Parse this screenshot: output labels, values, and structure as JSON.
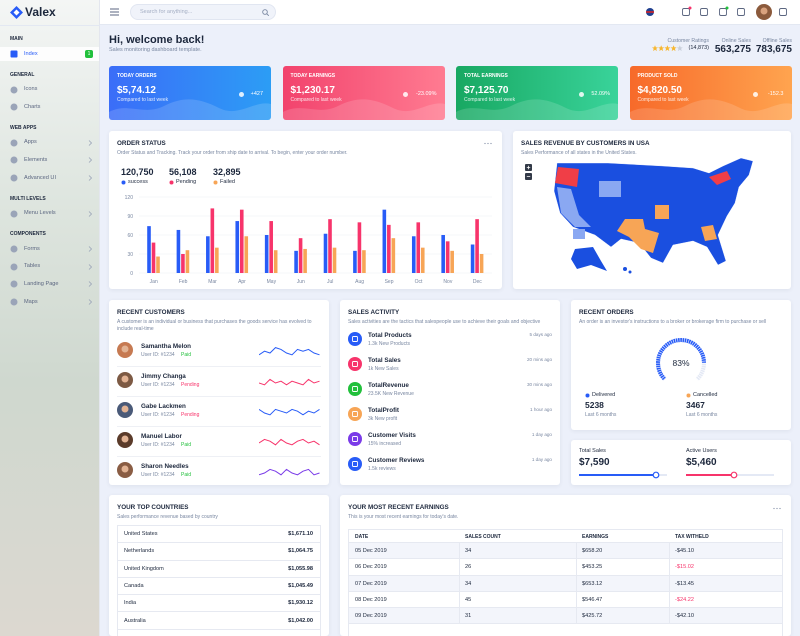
{
  "sidebar": {
    "brand": "Valex",
    "sections": [
      {
        "title": "MAIN",
        "items": [
          {
            "label": "Index",
            "badge": "1"
          }
        ]
      },
      {
        "title": "GENERAL",
        "items": [
          {
            "label": "Icons"
          },
          {
            "label": "Charts"
          }
        ]
      },
      {
        "title": "WEB APPS",
        "items": [
          {
            "label": "Apps"
          },
          {
            "label": "Elements"
          },
          {
            "label": "Advanced UI"
          }
        ]
      },
      {
        "title": "MULTI LEVELS",
        "items": [
          {
            "label": "Menu Levels"
          }
        ]
      },
      {
        "title": "COMPONENTS",
        "items": [
          {
            "label": "Forms"
          },
          {
            "label": "Tables"
          },
          {
            "label": "Landing Page"
          },
          {
            "label": "Maps"
          }
        ]
      }
    ]
  },
  "header": {
    "search_placeholder": "Search for anything..."
  },
  "welcome": {
    "title": "Hi, welcome back!",
    "subtitle": "Sales monitoring dashboard template.",
    "ratings": {
      "label": "Customer Ratings",
      "count": "(14,873)"
    },
    "stats": [
      {
        "label": "Online Sales",
        "value": "563,275"
      },
      {
        "label": "Offline Sales",
        "value": "783,675"
      }
    ]
  },
  "kpis": [
    {
      "title": "TODAY ORDERS",
      "value": "$5,74.12",
      "note": "Compared to last week",
      "change": "+427"
    },
    {
      "title": "TODAY EARNINGS",
      "value": "$1,230.17",
      "note": "Compared to last week",
      "change": "-23.09%"
    },
    {
      "title": "TOTAL EARNINGS",
      "value": "$7,125.70",
      "note": "Compared to last week",
      "change": "52.09%"
    },
    {
      "title": "PRODUCT SOLD",
      "value": "$4,820.50",
      "note": "Compared to last week",
      "change": "-152.3"
    }
  ],
  "order_status": {
    "title": "ORDER STATUS",
    "description": "Order Status and Tracking. Track your order from ship date to arrival. To begin, enter your order number.",
    "stats": [
      {
        "value": "120,750",
        "label": "success"
      },
      {
        "value": "56,108",
        "label": "Pending"
      },
      {
        "value": "32,895",
        "label": "Failed"
      }
    ],
    "chart": {
      "type": "bar",
      "categories": [
        "Jan",
        "Feb",
        "Mar",
        "Apr",
        "May",
        "Jun",
        "Jul",
        "Aug",
        "Sep",
        "Oct",
        "Nov",
        "Dec"
      ],
      "series": [
        {
          "color": "#285cf7",
          "values": [
            74,
            68,
            58,
            82,
            60,
            35,
            62,
            35,
            100,
            58,
            60,
            45
          ]
        },
        {
          "color": "#f7346b",
          "values": [
            48,
            30,
            102,
            100,
            82,
            55,
            85,
            80,
            76,
            80,
            50,
            85
          ]
        },
        {
          "color": "#f7a556",
          "values": [
            26,
            36,
            40,
            58,
            36,
            38,
            40,
            36,
            55,
            40,
            35,
            30
          ]
        }
      ],
      "ylim": [
        0,
        120
      ],
      "yticks": [
        0,
        30,
        60,
        90,
        120
      ],
      "grid": true
    }
  },
  "sales_map": {
    "title": "SALES REVENUE BY CUSTOMERS IN USA",
    "subtitle": "Sales Performance of all states in the United States."
  },
  "recent_customers": {
    "title": "RECENT CUSTOMERS",
    "description": "A customer is an individual or business that purchases the goods service has evolved to include real-time",
    "customers": [
      {
        "name": "Samantha Melon",
        "user_id": "User ID: #1234",
        "status": "Paid"
      },
      {
        "name": "Jimmy Changa",
        "user_id": "User ID: #1234",
        "status": "Pending"
      },
      {
        "name": "Gabe Lackmen",
        "user_id": "User ID: #1234",
        "status": "Pending"
      },
      {
        "name": "Manuel Labor",
        "user_id": "User ID: #1234",
        "status": "Paid"
      },
      {
        "name": "Sharon Needles",
        "user_id": "User ID: #1234",
        "status": "Paid"
      }
    ]
  },
  "sales_activity": {
    "title": "SALES ACTIVITY",
    "description": "Sales activities are the tactics that salespeople use to achieve their goals and objective",
    "items": [
      {
        "title": "Total Products",
        "subtitle": "1.3k New Products",
        "time": "5 days ago"
      },
      {
        "title": "Total Sales",
        "subtitle": "1k New Sales",
        "time": "20 mins ago"
      },
      {
        "title": "TotalRevenue",
        "subtitle": "23.5K New Revenue",
        "time": "30 mins ago"
      },
      {
        "title": "TotalProfit",
        "subtitle": "3k New profit",
        "time": "1 hour ago"
      },
      {
        "title": "Customer Visits",
        "subtitle": "15% increased",
        "time": "1 day ago"
      },
      {
        "title": "Customer Reviews",
        "subtitle": "1.5k reviews",
        "time": "1 day ago"
      }
    ]
  },
  "recent_orders": {
    "title": "RECENT ORDERS",
    "description": "An order is an investor's instructions to a broker or brokerage firm to purchase or sell",
    "progress": {
      "value": 83,
      "label": "83%"
    },
    "stats": [
      {
        "label": "Delivered",
        "value": "5238",
        "period": "Last 6 months"
      },
      {
        "label": "Cancelled",
        "value": "3467",
        "period": "Last 6 months"
      }
    ]
  },
  "totals": [
    {
      "label": "Total Sales",
      "value": "$7,590"
    },
    {
      "label": "Active Users",
      "value": "$5,460"
    }
  ],
  "top_countries": {
    "title": "YOUR TOP COUNTRIES",
    "description": "Sales performance revenue based by country",
    "rows": [
      [
        "United States",
        "$1,671.10"
      ],
      [
        "Netherlands",
        "$1,064.75"
      ],
      [
        "United Kingdom",
        "$1,055.98"
      ],
      [
        "Canada",
        "$1,045.49"
      ],
      [
        "India",
        "$1,930.12"
      ],
      [
        "Australia",
        "$1,042.00"
      ]
    ]
  },
  "recent_earnings": {
    "title": "YOUR MOST RECENT EARNINGS",
    "description": "This is your most recent earnings for today's date.",
    "columns": [
      "DATE",
      "SALES COUNT",
      "EARNINGS",
      "TAX WITHELD"
    ],
    "rows": [
      [
        "05 Dec 2019",
        34,
        "$658.20",
        "-$45.10"
      ],
      [
        "06 Dec 2019",
        26,
        "$453.25",
        "-$15.02"
      ],
      [
        "07 Dec 2019",
        34,
        "$653.12",
        "-$13.45"
      ],
      [
        "08 Dec 2019",
        45,
        "$546.47",
        "-$24.22"
      ],
      [
        "09 Dec 2019",
        31,
        "$425.72",
        "-$42.10"
      ]
    ]
  }
}
